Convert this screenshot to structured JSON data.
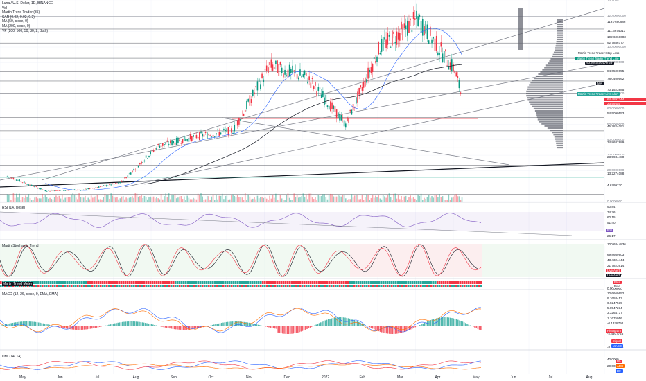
{
  "header": {
    "title": "Luna / U.S. Dollar, 1D, BINANCE",
    "indicators": [
      "Vol",
      "Martin Trend Trader (35)",
      "SAR (0.02, 0.02, 0.2)",
      "MA (50, close, 0)",
      "MA (200, close, 0)",
      "VP (200, 500, 50, 30, 2, Both)"
    ]
  },
  "price_axis": [
    "130 USD",
    "120.0000000",
    "110.0000000",
    "100.0000000",
    "90.0000000",
    "80.0000000",
    "70.0000000",
    "60.0000000",
    "50.0000000",
    "40.0000000",
    "30.0000000",
    "20.0000000",
    "10.0000000",
    "0.0000000"
  ],
  "price_levels": [
    {
      "value": "119.7690986",
      "color": "#131722",
      "bg": "#ffffff"
    },
    {
      "value": "111.6674013",
      "color": "#131722",
      "bg": "#ffffff"
    },
    {
      "value": "102.6068603",
      "color": "#131722",
      "bg": "#ffffff"
    },
    {
      "value": "92.7886777",
      "color": "#131722",
      "bg": "#ffffff"
    },
    {
      "value": "84.0500655",
      "color": "#131722",
      "bg": "#ffffff"
    },
    {
      "value": "78.0400562",
      "color": "#131722",
      "bg": "#ffffff"
    },
    {
      "value": "70.1523885",
      "color": "#131722",
      "bg": "#ffffff"
    },
    {
      "value": "64.4897244",
      "color": "#ffffff",
      "bg": "#f23645"
    },
    {
      "value": "23:59:04",
      "color": "#ffffff",
      "bg": "#f23645"
    },
    {
      "value": "54.5090553",
      "color": "#131722",
      "bg": "#ffffff"
    },
    {
      "value": "45.7824091",
      "color": "#131722",
      "bg": "#ffffff"
    },
    {
      "value": "34.8687889",
      "color": "#131722",
      "bg": "#ffffff"
    },
    {
      "value": "23.5934480",
      "color": "#131722",
      "bg": "#ffffff"
    },
    {
      "value": "13.2274088",
      "color": "#131722",
      "bg": "#ffffff"
    },
    {
      "value": "4.6799730",
      "color": "#131722",
      "bg": "#ffffff"
    }
  ],
  "line_tags": [
    {
      "text": "Martin Trend Trader:Stop Loss",
      "color": "#131722",
      "bg": "#ffffff"
    },
    {
      "text": "Martin Trend Trader:Trend Line",
      "color": "#ffffff",
      "bg": "#089981"
    },
    {
      "text": "SAR ParabolicSAR",
      "color": "#ffffff",
      "bg": "#131722"
    },
    {
      "text": "MA",
      "color": "#ffffff",
      "bg": "#131722"
    },
    {
      "text": "Martin Trend Trader:Live Alert",
      "color": "#ffffff",
      "bg": "#26a69a"
    }
  ],
  "rsi": {
    "title": "RSI (14, close)",
    "axis": [
      "90.84",
      "74.26",
      "60.15",
      "51.40",
      "26.17"
    ],
    "tag": "RSI"
  },
  "stoch": {
    "title": "Martin Stochastic Trend",
    "axis": [
      "100.6844836",
      "69.8669903",
      "43.4324444",
      "21.7823614",
      "0.0000000"
    ],
    "tags": [
      "Live Alert",
      "Live Alert"
    ]
  },
  "mtm": {
    "title": "Martin Trend Meter",
    "tags": [
      "Plus",
      "Rise"
    ],
    "axis": [
      "0.0000000"
    ]
  },
  "macd": {
    "title": "MACD (12, 26, close, 9, EMA, EMA)",
    "axis": [
      "10.6669652",
      "9.1658453",
      "6.9247539",
      "5.0547234",
      "3.3264737",
      "1.1675056",
      "-0.1378792",
      "-2.4307745",
      "-8.0000000"
    ],
    "tags": [
      "Histogram",
      "Signal",
      "MACD"
    ]
  },
  "dmi": {
    "title": "DMI (14, 14)",
    "axis": [
      "40.0000",
      "20.0000"
    ],
    "tags": [
      "DI-",
      "ADX",
      "DI+"
    ]
  },
  "x_axis": [
    "May",
    "Jun",
    "Jul",
    "Aug",
    "Sep",
    "Oct",
    "Nov",
    "Dec",
    "2022",
    "Feb",
    "Mar",
    "Apr",
    "May",
    "Jun",
    "Jul",
    "Aug"
  ],
  "chart_data": {
    "type": "line",
    "title": "Luna / U.S. Dollar, 1D, BINANCE",
    "ylim": [
      0,
      130
    ],
    "x": [
      "2021-05-01",
      "2021-06-01",
      "2021-07-01",
      "2021-08-01",
      "2021-09-01",
      "2021-10-01",
      "2021-11-01",
      "2021-12-01",
      "2022-01-01",
      "2022-02-01",
      "2022-03-01",
      "2022-04-01",
      "2022-05-01",
      "2022-05-08"
    ],
    "series": [
      {
        "name": "Luna / U.S. Dollar",
        "values": [
          16.5,
          7,
          7.5,
          12,
          36,
          42,
          46,
          88,
          80,
          50,
          100,
          118,
          85,
          64.49
        ]
      }
    ]
  },
  "colors": {
    "up": "#089981",
    "down": "#f23645",
    "bg": "#ffffff"
  }
}
